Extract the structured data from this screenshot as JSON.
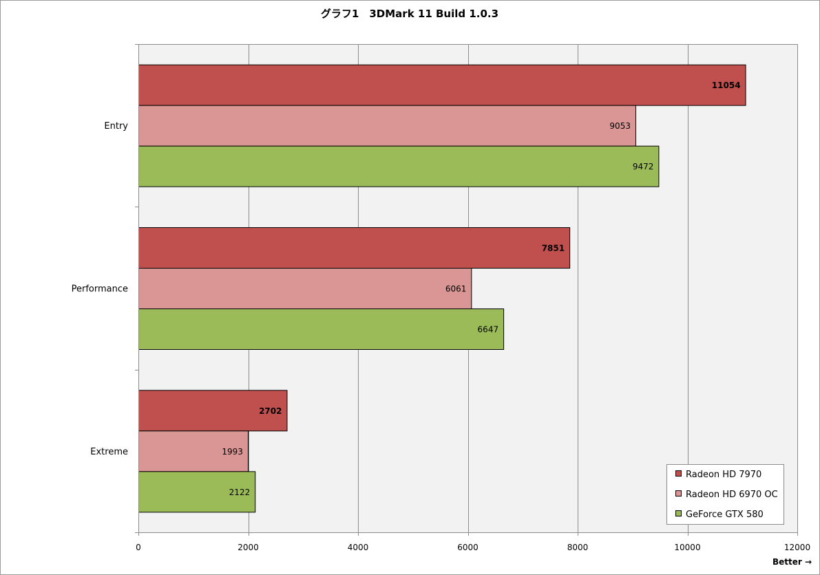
{
  "chart_data": {
    "type": "bar",
    "orientation": "horizontal",
    "title": "グラフ1　3DMark 11 Build 1.0.3",
    "categories": [
      "Entry",
      "Performance",
      "Extreme"
    ],
    "series": [
      {
        "name": "Radeon HD 7970",
        "color": "#c0504d",
        "values": [
          11054,
          7851,
          2702
        ]
      },
      {
        "name": "Radeon HD 6970 OC",
        "color": "#d99694",
        "values": [
          9053,
          6061,
          1993
        ]
      },
      {
        "name": "GeForce GTX 580",
        "color": "#9bbb59",
        "values": [
          9472,
          6647,
          2122
        ]
      }
    ],
    "bold_series_index": 0,
    "xlim": [
      0,
      12000
    ],
    "xticks": [
      0,
      2000,
      4000,
      6000,
      8000,
      10000,
      12000
    ],
    "xlabel": "Better →",
    "grid": true,
    "legend_position": "bottom-right",
    "plot_background": "#f2f2f2"
  }
}
